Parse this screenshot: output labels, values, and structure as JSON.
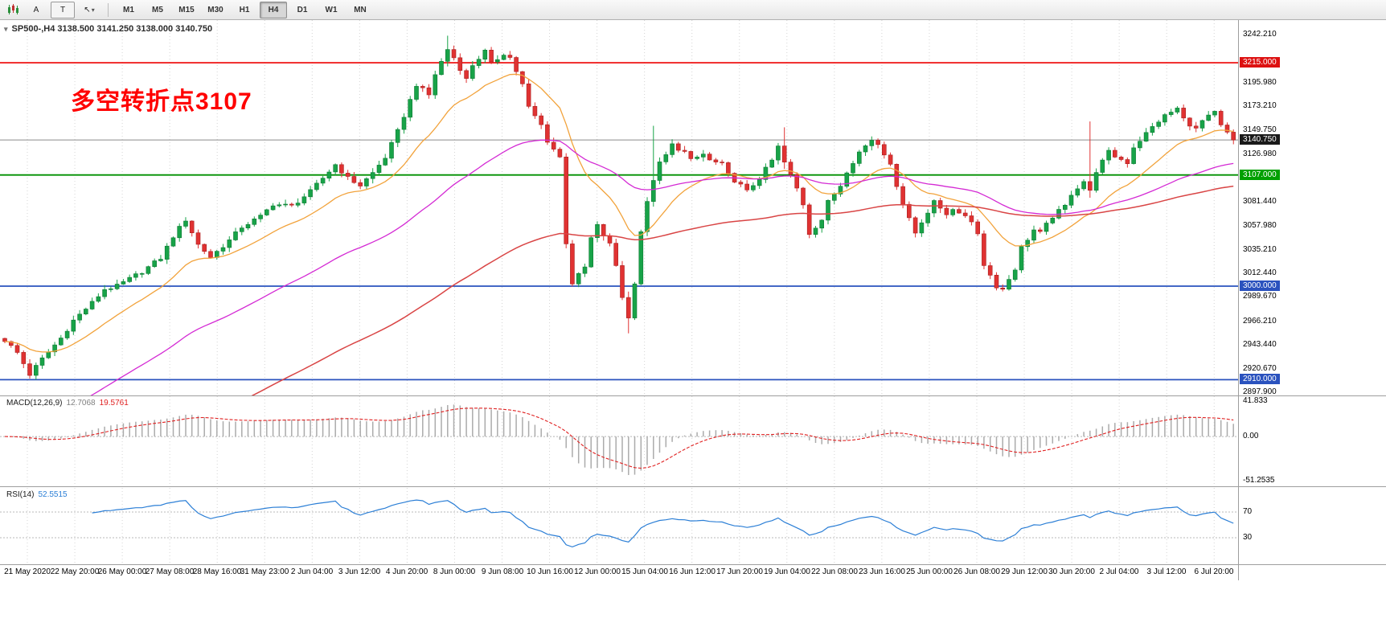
{
  "toolbar": {
    "buttons": [
      {
        "name": "chart-window-icon",
        "label": ""
      },
      {
        "name": "annotations-tool",
        "label": "A"
      },
      {
        "name": "text-tool",
        "label": "T"
      },
      {
        "name": "cursor-tool",
        "label": ""
      }
    ],
    "timeframes": [
      "M1",
      "M5",
      "M15",
      "M30",
      "H1",
      "H4",
      "D1",
      "W1",
      "MN"
    ],
    "active_timeframe": "H4"
  },
  "chart": {
    "symbol": "SP500-",
    "period": "H4",
    "title": "SP500-,H4 3138.500 3141.250 3138.000 3140.750",
    "ohlc": {
      "open": "3138.500",
      "high": "3141.250",
      "low": "3138.000",
      "close": "3140.750"
    },
    "annotation": {
      "text": "多空转折点3107",
      "color": "#ff0000"
    }
  },
  "chart_data": {
    "type": "candlestick",
    "symbol": "SP500-",
    "period": "H4",
    "bars": 198,
    "price_axis": {
      "top": 3256.1,
      "bottom": 2894.8,
      "labels": [
        "3242.210",
        "3195.980",
        "3173.210",
        "3149.750",
        "3126.980",
        "3081.440",
        "3057.980",
        "3035.210",
        "3012.440",
        "2989.670",
        "2966.210",
        "2943.440",
        "2920.670",
        "2897.900"
      ]
    },
    "badges": [
      {
        "text": "3215.000",
        "price": 3215.0,
        "bg": "#dd1111"
      },
      {
        "text": "3140.750",
        "price": 3140.75,
        "bg": "#1a1a1a"
      },
      {
        "text": "3107.000",
        "price": 3107.0,
        "bg": "#00a000"
      },
      {
        "text": "3000.000",
        "price": 3000.0,
        "bg": "#2a52be"
      },
      {
        "text": "2910.000",
        "price": 2910.0,
        "bg": "#2a52be"
      }
    ],
    "hlines": [
      {
        "name": "resistance-3215",
        "price": 3215.0,
        "color": "#ee0000",
        "width": 1.6
      },
      {
        "name": "bid-line",
        "price": 3140.75,
        "color": "#8a8a8a",
        "width": 1.0
      },
      {
        "name": "pivot-3107",
        "price": 3107.0,
        "color": "#009000",
        "width": 1.8
      },
      {
        "name": "support-3000",
        "price": 3000.0,
        "color": "#2a52be",
        "width": 1.8
      },
      {
        "name": "support-2910",
        "price": 2910.0,
        "color": "#2a52be",
        "width": 1.8
      }
    ],
    "candle_colors": {
      "bull": "#18a348",
      "bear": "#e03232",
      "bull_border": "#0d7a33",
      "bear_border": "#a82020"
    },
    "close_anchors": [
      [
        0,
        2948
      ],
      [
        2,
        2936
      ],
      [
        4,
        2915
      ],
      [
        6,
        2930
      ],
      [
        9,
        2950
      ],
      [
        11,
        2967
      ],
      [
        14,
        2984
      ],
      [
        16,
        2997
      ],
      [
        18,
        3000
      ],
      [
        20,
        3007
      ],
      [
        22,
        3014
      ],
      [
        25,
        3027
      ],
      [
        27,
        3048
      ],
      [
        29,
        3064
      ],
      [
        31,
        3040
      ],
      [
        33,
        3028
      ],
      [
        36,
        3044
      ],
      [
        38,
        3057
      ],
      [
        41,
        3067
      ],
      [
        43,
        3079
      ],
      [
        46,
        3077
      ],
      [
        49,
        3091
      ],
      [
        51,
        3104
      ],
      [
        53,
        3117
      ],
      [
        55,
        3104
      ],
      [
        57,
        3097
      ],
      [
        59,
        3109
      ],
      [
        61,
        3124
      ],
      [
        63,
        3149
      ],
      [
        65,
        3179
      ],
      [
        66,
        3194
      ],
      [
        68,
        3184
      ],
      [
        69,
        3204
      ],
      [
        71,
        3228
      ],
      [
        72,
        3220
      ],
      [
        74,
        3199
      ],
      [
        75,
        3213
      ],
      [
        77,
        3226
      ],
      [
        78,
        3214
      ],
      [
        80,
        3224
      ],
      [
        81,
        3220
      ],
      [
        83,
        3194
      ],
      [
        84,
        3172
      ],
      [
        86,
        3155
      ],
      [
        87,
        3140
      ],
      [
        89,
        3124
      ],
      [
        90,
        3042
      ],
      [
        91,
        3003
      ],
      [
        93,
        3018
      ],
      [
        94,
        3046
      ],
      [
        95,
        3058
      ],
      [
        97,
        3040
      ],
      [
        98,
        3020
      ],
      [
        99,
        2990
      ],
      [
        100,
        2969
      ],
      [
        101,
        3004
      ],
      [
        102,
        3053
      ],
      [
        103,
        3080
      ],
      [
        104,
        3103
      ],
      [
        105,
        3118
      ],
      [
        106,
        3126
      ],
      [
        107,
        3136
      ],
      [
        109,
        3129
      ],
      [
        110,
        3121
      ],
      [
        112,
        3127
      ],
      [
        113,
        3121
      ],
      [
        115,
        3117
      ],
      [
        116,
        3107
      ],
      [
        118,
        3097
      ],
      [
        119,
        3091
      ],
      [
        121,
        3104
      ],
      [
        123,
        3121
      ],
      [
        124,
        3134
      ],
      [
        125,
        3119
      ],
      [
        127,
        3094
      ],
      [
        128,
        3079
      ],
      [
        129,
        3051
      ],
      [
        131,
        3064
      ],
      [
        132,
        3081
      ],
      [
        134,
        3097
      ],
      [
        135,
        3111
      ],
      [
        137,
        3129
      ],
      [
        139,
        3141
      ],
      [
        140,
        3137
      ],
      [
        142,
        3119
      ],
      [
        143,
        3094
      ],
      [
        145,
        3067
      ],
      [
        146,
        3051
      ],
      [
        148,
        3071
      ],
      [
        149,
        3084
      ],
      [
        151,
        3067
      ],
      [
        152,
        3074
      ],
      [
        154,
        3069
      ],
      [
        156,
        3051
      ],
      [
        157,
        3021
      ],
      [
        159,
        3000
      ],
      [
        160,
        2997
      ],
      [
        162,
        3017
      ],
      [
        163,
        3037
      ],
      [
        165,
        3054
      ],
      [
        166,
        3051
      ],
      [
        168,
        3067
      ],
      [
        170,
        3077
      ],
      [
        171,
        3089
      ],
      [
        173,
        3101
      ],
      [
        174,
        3091
      ],
      [
        175,
        3111
      ],
      [
        177,
        3129
      ],
      [
        178,
        3125
      ],
      [
        180,
        3119
      ],
      [
        181,
        3134
      ],
      [
        183,
        3147
      ],
      [
        185,
        3159
      ],
      [
        186,
        3164
      ],
      [
        188,
        3171
      ],
      [
        189,
        3161
      ],
      [
        191,
        3151
      ],
      [
        192,
        3159
      ],
      [
        194,
        3167
      ],
      [
        195,
        3154
      ],
      [
        197,
        3140.75
      ]
    ],
    "wick_overrides": {
      "71": [
        10,
        3
      ],
      "100": [
        5,
        14
      ],
      "104": [
        48,
        3
      ],
      "125": [
        15,
        3
      ],
      "174": [
        55,
        3
      ]
    },
    "moving_averages": [
      {
        "name": "ma-fast",
        "color": "#f2a33c",
        "alpha": 0.12,
        "seed": null,
        "width": 1.3
      },
      {
        "name": "ma-medium",
        "color": "#d42ad4",
        "alpha": 0.038,
        "seed": 2852,
        "width": 1.3
      },
      {
        "name": "ma-slow",
        "color": "#d94545",
        "alpha": 0.018,
        "seed": 2770,
        "width": 1.5
      }
    ],
    "macd": {
      "label": "MACD(12,26,9)",
      "value_main": "12.7068",
      "value_signal": "19.5761",
      "params": {
        "fast": 12,
        "slow": 26,
        "signal": 9
      },
      "scale_labels": [
        {
          "text": "41.833",
          "value": 41.833
        },
        {
          "text": "0.00",
          "value": 0
        },
        {
          "text": "-51.2535",
          "value": -51.2535
        }
      ],
      "range": {
        "max": 47,
        "min": -58
      },
      "histogram_color": "#ababab",
      "signal_color": "#e02020"
    },
    "rsi": {
      "label": "RSI(14)",
      "value": "52.5515",
      "period": 14,
      "levels": [
        {
          "text": "70",
          "value": 70
        },
        {
          "text": "30",
          "value": 30
        }
      ],
      "line_color": "#2c7fd6"
    },
    "x_axis": [
      "21 May 2020",
      "22 May 20:00",
      "26 May 00:00",
      "27 May 08:00",
      "28 May 16:00",
      "31 May 23:00",
      "2 Jun 04:00",
      "3 Jun 12:00",
      "4 Jun 20:00",
      "8 Jun 00:00",
      "9 Jun 08:00",
      "10 Jun 16:00",
      "12 Jun 00:00",
      "15 Jun 04:00",
      "16 Jun 12:00",
      "17 Jun 20:00",
      "19 Jun 04:00",
      "22 Jun 08:00",
      "23 Jun 16:00",
      "25 Jun 00:00",
      "26 Jun 08:00",
      "29 Jun 12:00",
      "30 Jun 20:00",
      "2 Jul 04:00",
      "3 Jul 12:00",
      "6 Jul 20:00"
    ]
  }
}
